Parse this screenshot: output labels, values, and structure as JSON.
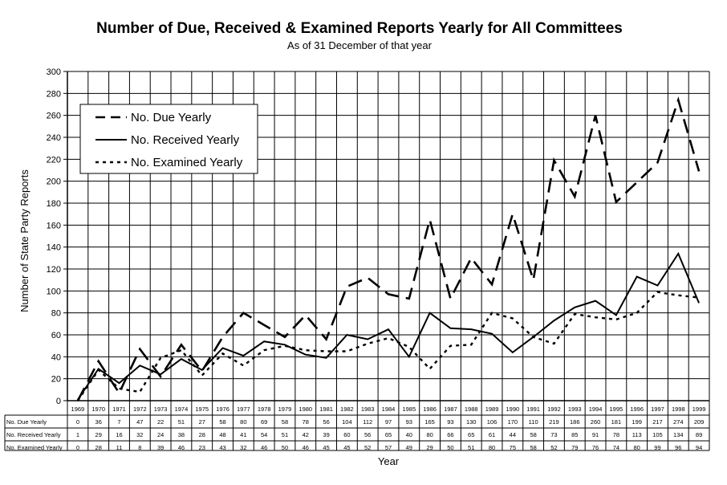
{
  "chart_data": {
    "type": "line",
    "title": "Number of Due, Received & Examined Reports Yearly for All Committees",
    "subtitle": "As of 31 December of that year",
    "xlabel": "Year",
    "ylabel": "Number of State Party Reports",
    "ylim": [
      0,
      300
    ],
    "yticks": [
      0,
      20,
      40,
      60,
      80,
      100,
      120,
      140,
      160,
      180,
      200,
      220,
      240,
      260,
      280,
      300
    ],
    "grid": true,
    "legend_position": "top-left",
    "categories": [
      "1969",
      "1970",
      "1971",
      "1972",
      "1973",
      "1974",
      "1975",
      "1976",
      "1977",
      "1978",
      "1979",
      "1980",
      "1981",
      "1982",
      "1983",
      "1984",
      "1985",
      "1986",
      "1987",
      "1988",
      "1989",
      "1990",
      "1991",
      "1992",
      "1993",
      "1994",
      "1995",
      "1996",
      "1997",
      "1998",
      "1999"
    ],
    "series": [
      {
        "name": "No. Due Yearly",
        "table_label": "No. Due Yearly",
        "style": "dashed",
        "values": [
          0,
          36,
          7,
          47,
          22,
          51,
          27,
          58,
          80,
          69,
          58,
          78,
          56,
          104,
          112,
          97,
          93,
          165,
          93,
          130,
          106,
          170,
          110,
          219,
          186,
          260,
          181,
          199,
          217,
          274,
          209
        ]
      },
      {
        "name": "No. Received Yearly",
        "table_label": "No. Received Yearly",
        "style": "solid",
        "values": [
          1,
          29,
          16,
          32,
          24,
          38,
          28,
          48,
          41,
          54,
          51,
          42,
          39,
          60,
          56,
          65,
          40,
          80,
          66,
          65,
          61,
          44,
          58,
          73,
          85,
          91,
          78,
          113,
          105,
          134,
          89
        ]
      },
      {
        "name": "No. Examined Yearly",
        "table_label": "No. Examined Yearly",
        "style": "dotted",
        "values": [
          0,
          28,
          11,
          8,
          39,
          46,
          23,
          43,
          32,
          46,
          50,
          46,
          45,
          45,
          52,
          57,
          49,
          29,
          50,
          51,
          80,
          75,
          58,
          52,
          79,
          76,
          74,
          80,
          99,
          96,
          94
        ]
      }
    ]
  }
}
